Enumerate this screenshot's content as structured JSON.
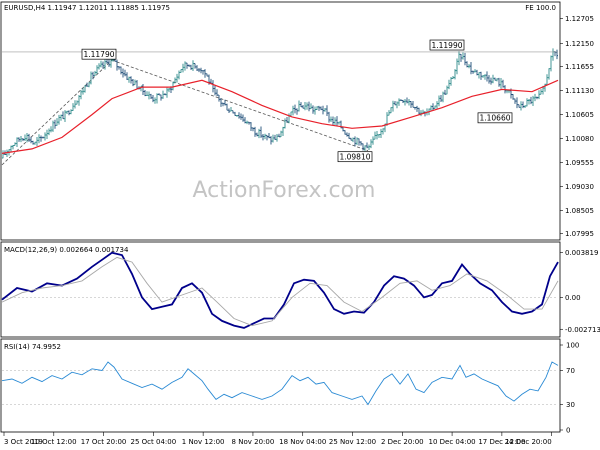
{
  "header": {
    "symbol_line": "EURUSD,H4  1.11947 1.12011 1.11885 1.11975",
    "fe_label": "FE 100.0",
    "macd_line": "MACD(12,26,9) 0.002664 0.001734",
    "rsi_line": "RSI(14) 74.9952"
  },
  "watermark": "ActionForex.com",
  "colors": {
    "bull_bar": "#2e8b8b",
    "bear_bar": "#1f4e79",
    "moving_average": "#e8202a",
    "macd_line": "#00008b",
    "macd_signal": "#a8a8a8",
    "rsi_line": "#2a8ad4",
    "fib_line": "#555555"
  },
  "chart_data": [
    {
      "type": "line",
      "panel": "price",
      "x": [
        "3 Oct 2019",
        "10 Oct 12:00",
        "17 Oct 20:00",
        "25 Oct 04:00",
        "1 Nov 12:00",
        "8 Nov 20:00",
        "18 Nov 04:00",
        "25 Nov 12:00",
        "2 Dec 20:00",
        "10 Dec 04:00",
        "17 Dec 12:00",
        "24 Dec 20:00"
      ],
      "ylim": [
        1.079,
        1.128
      ],
      "y_ticks": [
        "1.12705",
        "1.12150",
        "1.11655",
        "1.11130",
        "1.10605",
        "1.10080",
        "1.09555",
        "1.09030",
        "1.08505",
        "1.07995"
      ],
      "price_path": [
        [
          0,
          1.0965
        ],
        [
          8,
          1.099
        ],
        [
          16,
          1.1005
        ],
        [
          24,
          1.1015
        ],
        [
          32,
          1.0995
        ],
        [
          40,
          1.101
        ],
        [
          48,
          1.103
        ],
        [
          56,
          1.105
        ],
        [
          64,
          1.106
        ],
        [
          72,
          1.1085
        ],
        [
          80,
          1.111
        ],
        [
          88,
          1.114
        ],
        [
          96,
          1.116
        ],
        [
          104,
          1.1172
        ],
        [
          110,
          1.1179
        ],
        [
          118,
          1.116
        ],
        [
          126,
          1.114
        ],
        [
          134,
          1.1125
        ],
        [
          142,
          1.111
        ],
        [
          150,
          1.1095
        ],
        [
          158,
          1.11
        ],
        [
          166,
          1.111
        ],
        [
          174,
          1.114
        ],
        [
          180,
          1.1165
        ],
        [
          186,
          1.117
        ],
        [
          192,
          1.1165
        ],
        [
          200,
          1.116
        ],
        [
          206,
          1.114
        ],
        [
          212,
          1.1105
        ],
        [
          220,
          1.1085
        ],
        [
          228,
          1.107
        ],
        [
          236,
          1.106
        ],
        [
          244,
          1.1045
        ],
        [
          252,
          1.1025
        ],
        [
          260,
          1.1015
        ],
        [
          268,
          1.1005
        ],
        [
          276,
          1.101
        ],
        [
          284,
          1.1045
        ],
        [
          290,
          1.1065
        ],
        [
          296,
          1.1075
        ],
        [
          304,
          1.108
        ],
        [
          312,
          1.107
        ],
        [
          320,
          1.1075
        ],
        [
          328,
          1.105
        ],
        [
          336,
          1.104
        ],
        [
          344,
          1.102
        ],
        [
          352,
          1.1005
        ],
        [
          360,
          1.0995
        ],
        [
          366,
          1.0985
        ],
        [
          372,
          1.1005
        ],
        [
          380,
          1.103
        ],
        [
          386,
          1.106
        ],
        [
          392,
          1.1085
        ],
        [
          400,
          1.1095
        ],
        [
          408,
          1.109
        ],
        [
          416,
          1.107
        ],
        [
          422,
          1.106
        ],
        [
          428,
          1.1068
        ],
        [
          434,
          1.1085
        ],
        [
          440,
          1.11
        ],
        [
          446,
          1.112
        ],
        [
          452,
          1.115
        ],
        [
          458,
          1.1192
        ],
        [
          464,
          1.1175
        ],
        [
          470,
          1.1155
        ],
        [
          478,
          1.115
        ],
        [
          486,
          1.114
        ],
        [
          494,
          1.1135
        ],
        [
          500,
          1.1125
        ],
        [
          506,
          1.111
        ],
        [
          512,
          1.109
        ],
        [
          518,
          1.1075
        ],
        [
          524,
          1.1085
        ],
        [
          530,
          1.1092
        ],
        [
          536,
          1.1095
        ],
        [
          542,
          1.1115
        ],
        [
          548,
          1.1175
        ],
        [
          552,
          1.1196
        ],
        [
          556,
          1.119
        ]
      ],
      "moving_average": [
        [
          0,
          1.0975
        ],
        [
          30,
          1.0985
        ],
        [
          60,
          1.101
        ],
        [
          90,
          1.106
        ],
        [
          110,
          1.1095
        ],
        [
          140,
          1.112
        ],
        [
          170,
          1.112
        ],
        [
          200,
          1.1135
        ],
        [
          230,
          1.111
        ],
        [
          260,
          1.108
        ],
        [
          290,
          1.1055
        ],
        [
          320,
          1.104
        ],
        [
          350,
          1.103
        ],
        [
          380,
          1.1035
        ],
        [
          410,
          1.1055
        ],
        [
          440,
          1.1075
        ],
        [
          470,
          1.11
        ],
        [
          500,
          1.1115
        ],
        [
          530,
          1.111
        ],
        [
          556,
          1.1135
        ]
      ],
      "annotations": [
        {
          "label": "1.11790",
          "x": 110,
          "value": 1.1179
        },
        {
          "label": "1.09810",
          "x": 366,
          "value": 1.0981
        },
        {
          "label": "1.11990",
          "x": 458,
          "value": 1.1199
        },
        {
          "label": "1.10660",
          "x": 506,
          "value": 1.1066
        }
      ],
      "horizontal_level": 1.1197,
      "fib_lines": [
        {
          "from": [
            0,
            1.095
          ],
          "to": [
            110,
            1.1179
          ]
        },
        {
          "from": [
            110,
            1.1179
          ],
          "to": [
            366,
            1.0981
          ]
        }
      ]
    },
    {
      "type": "line",
      "panel": "macd",
      "ylim": [
        -0.0032,
        0.0042
      ],
      "y_ticks": [
        "0.003819",
        "0.00",
        "-0.002713"
      ],
      "series": [
        {
          "role": "main",
          "values": [
            [
              0,
              -0.0002
            ],
            [
              15,
              0.0008
            ],
            [
              30,
              0.0005
            ],
            [
              45,
              0.0012
            ],
            [
              60,
              0.001
            ],
            [
              75,
              0.0016
            ],
            [
              90,
              0.0026
            ],
            [
              100,
              0.0032
            ],
            [
              110,
              0.0038
            ],
            [
              120,
              0.0036
            ],
            [
              130,
              0.002
            ],
            [
              140,
              0.0
            ],
            [
              150,
              -0.001
            ],
            [
              160,
              -0.0008
            ],
            [
              170,
              -0.0006
            ],
            [
              180,
              0.0008
            ],
            [
              190,
              0.0012
            ],
            [
              200,
              0.0004
            ],
            [
              210,
              -0.0014
            ],
            [
              220,
              -0.002
            ],
            [
              232,
              -0.0024
            ],
            [
              242,
              -0.0026
            ],
            [
              252,
              -0.0022
            ],
            [
              262,
              -0.0018
            ],
            [
              272,
              -0.0018
            ],
            [
              282,
              -0.0006
            ],
            [
              292,
              0.0012
            ],
            [
              302,
              0.0015
            ],
            [
              312,
              0.0014
            ],
            [
              322,
              0.0004
            ],
            [
              332,
              -0.001
            ],
            [
              342,
              -0.0014
            ],
            [
              352,
              -0.0012
            ],
            [
              362,
              -0.0013
            ],
            [
              372,
              -0.0004
            ],
            [
              382,
              0.001
            ],
            [
              392,
              0.0018
            ],
            [
              402,
              0.0016
            ],
            [
              412,
              0.001
            ],
            [
              422,
              0.0
            ],
            [
              430,
              0.0002
            ],
            [
              440,
              0.0012
            ],
            [
              450,
              0.0014
            ],
            [
              460,
              0.0028
            ],
            [
              468,
              0.002
            ],
            [
              478,
              0.0012
            ],
            [
              490,
              0.0006
            ],
            [
              500,
              -0.0004
            ],
            [
              510,
              -0.0012
            ],
            [
              520,
              -0.0014
            ],
            [
              530,
              -0.0012
            ],
            [
              540,
              -0.0006
            ],
            [
              548,
              0.0018
            ],
            [
              556,
              0.003
            ]
          ]
        },
        {
          "role": "signal",
          "values": [
            [
              0,
              -0.0004
            ],
            [
              20,
              0.0004
            ],
            [
              40,
              0.0008
            ],
            [
              60,
              0.001
            ],
            [
              80,
              0.0014
            ],
            [
              100,
              0.0026
            ],
            [
              115,
              0.0034
            ],
            [
              130,
              0.003
            ],
            [
              145,
              0.0012
            ],
            [
              160,
              -0.0004
            ],
            [
              180,
              0.0002
            ],
            [
              200,
              0.0008
            ],
            [
              215,
              -0.0004
            ],
            [
              232,
              -0.0018
            ],
            [
              250,
              -0.0024
            ],
            [
              270,
              -0.002
            ],
            [
              290,
              0.0
            ],
            [
              308,
              0.0012
            ],
            [
              325,
              0.001
            ],
            [
              342,
              -0.0004
            ],
            [
              360,
              -0.0012
            ],
            [
              380,
              0.0
            ],
            [
              398,
              0.0012
            ],
            [
              415,
              0.0014
            ],
            [
              430,
              0.0006
            ],
            [
              448,
              0.001
            ],
            [
              465,
              0.002
            ],
            [
              485,
              0.0014
            ],
            [
              505,
              0.0002
            ],
            [
              522,
              -0.001
            ],
            [
              540,
              -0.001
            ],
            [
              556,
              0.0014
            ]
          ]
        }
      ]
    },
    {
      "type": "line",
      "panel": "rsi",
      "ylim": [
        0,
        100
      ],
      "y_ticks": [
        "100",
        "70",
        "30",
        "0"
      ],
      "levels": [
        70,
        30
      ],
      "series": [
        {
          "role": "main",
          "values": [
            [
              0,
              58
            ],
            [
              10,
              60
            ],
            [
              20,
              55
            ],
            [
              30,
              62
            ],
            [
              40,
              57
            ],
            [
              50,
              64
            ],
            [
              60,
              60
            ],
            [
              70,
              68
            ],
            [
              80,
              65
            ],
            [
              90,
              72
            ],
            [
              100,
              70
            ],
            [
              106,
              80
            ],
            [
              112,
              74
            ],
            [
              120,
              60
            ],
            [
              130,
              55
            ],
            [
              140,
              50
            ],
            [
              150,
              54
            ],
            [
              160,
              48
            ],
            [
              170,
              56
            ],
            [
              180,
              62
            ],
            [
              186,
              72
            ],
            [
              192,
              66
            ],
            [
              200,
              58
            ],
            [
              206,
              48
            ],
            [
              214,
              36
            ],
            [
              222,
              42
            ],
            [
              230,
              38
            ],
            [
              240,
              44
            ],
            [
              250,
              40
            ],
            [
              260,
              36
            ],
            [
              270,
              40
            ],
            [
              280,
              48
            ],
            [
              290,
              64
            ],
            [
              298,
              58
            ],
            [
              306,
              62
            ],
            [
              314,
              54
            ],
            [
              322,
              56
            ],
            [
              330,
              44
            ],
            [
              340,
              40
            ],
            [
              350,
              36
            ],
            [
              360,
              40
            ],
            [
              366,
              30
            ],
            [
              374,
              46
            ],
            [
              382,
              60
            ],
            [
              390,
              66
            ],
            [
              398,
              54
            ],
            [
              406,
              66
            ],
            [
              414,
              48
            ],
            [
              422,
              44
            ],
            [
              430,
              56
            ],
            [
              440,
              62
            ],
            [
              450,
              60
            ],
            [
              458,
              76
            ],
            [
              464,
              62
            ],
            [
              472,
              66
            ],
            [
              480,
              60
            ],
            [
              488,
              56
            ],
            [
              496,
              52
            ],
            [
              504,
              40
            ],
            [
              512,
              34
            ],
            [
              520,
              42
            ],
            [
              528,
              48
            ],
            [
              536,
              46
            ],
            [
              544,
              62
            ],
            [
              550,
              80
            ],
            [
              556,
              76
            ]
          ]
        }
      ]
    }
  ]
}
